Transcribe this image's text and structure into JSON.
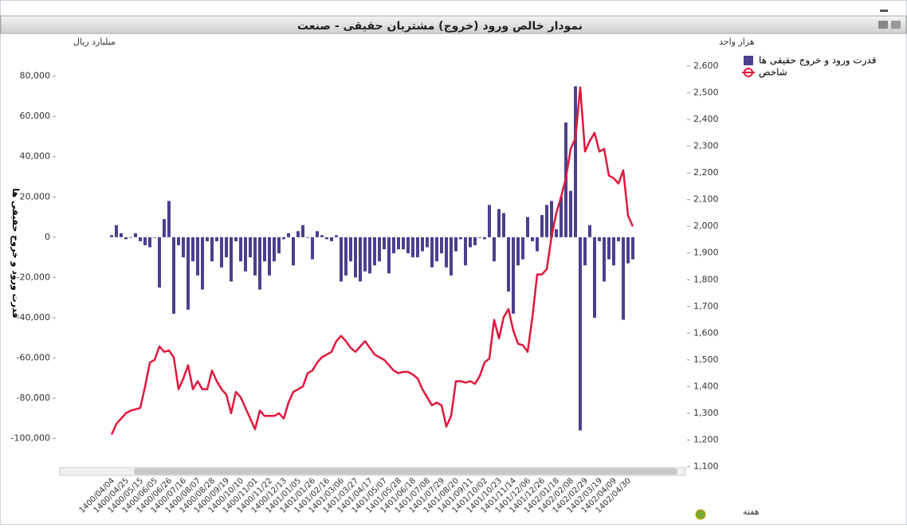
{
  "chart_data": {
    "type": "combo",
    "title": "نمودار خالص ورود (خروج) مشتریان حقیقی - صنعت",
    "y_unit": "میلیارد ریال",
    "y2_unit": "هزار واحد",
    "ylabel": "قدرت ورود و خروج حقیقی ها",
    "xlabel": "هفته",
    "categories": [
      "1400/04/04",
      null,
      null,
      "1400/04/25",
      null,
      null,
      "1400/05/15",
      null,
      null,
      "1400/06/05",
      null,
      null,
      "1400/06/26",
      null,
      null,
      "1400/07/16",
      null,
      null,
      "1400/08/07",
      null,
      null,
      "1400/08/28",
      null,
      null,
      "1400/09/19",
      null,
      null,
      "1400/10/10",
      null,
      null,
      "1400/11/01",
      null,
      null,
      "1400/11/22",
      null,
      null,
      "1400/12/13",
      null,
      null,
      "1401/01/05",
      null,
      null,
      "1401/01/26",
      null,
      null,
      "1401/02/16",
      null,
      null,
      "1401/03/06",
      null,
      null,
      "1401/03/27",
      null,
      null,
      "1401/04/17",
      null,
      null,
      "1401/05/07",
      null,
      null,
      "1401/05/28",
      null,
      null,
      "1401/06/18",
      null,
      null,
      "1401/07/08",
      null,
      null,
      "1401/07/29",
      null,
      null,
      "1401/08/20",
      null,
      null,
      "1401/09/11",
      null,
      null,
      "1401/10/02",
      null,
      null,
      "1401/10/23",
      null,
      null,
      "1401/11/14",
      null,
      null,
      "1401/12/06",
      null,
      null,
      "1401/12/26",
      null,
      null,
      "1402/01/18",
      null,
      null,
      "1402/02/08",
      null,
      null,
      "1402/02/29",
      null,
      null,
      "1402/03/19",
      null,
      null,
      "1402/04/09",
      null,
      null,
      "1402/04/30",
      null
    ],
    "series": [
      {
        "name": "قدرت ورود و خروج حقیقی ها",
        "type": "bar",
        "color": "#4b3f8e",
        "values": [
          1000,
          6000,
          2000,
          -1000,
          0,
          2000,
          -2000,
          -4000,
          -5000,
          0,
          -25000,
          9000,
          18000,
          -38000,
          -4000,
          -10000,
          -36000,
          -12000,
          -19000,
          -26000,
          -2000,
          -12000,
          -2000,
          -15000,
          -10000,
          -22000,
          -2000,
          -12000,
          -17000,
          -10000,
          -19000,
          -26000,
          -12000,
          -19000,
          -12000,
          -8000,
          -1000,
          2000,
          -14000,
          3000,
          6000,
          0,
          -11000,
          3000,
          1000,
          -1000,
          -2000,
          1000,
          -22000,
          -19000,
          -12000,
          -20000,
          -22000,
          -17000,
          -18000,
          -14000,
          -12000,
          -6000,
          -18000,
          -8000,
          -6000,
          -6000,
          -8000,
          -10000,
          -10000,
          -7000,
          -5000,
          -15000,
          -12000,
          -8000,
          -15000,
          -19000,
          -7000,
          -1000,
          -14000,
          -5000,
          -4000,
          0,
          -1000,
          16000,
          -12000,
          14000,
          12000,
          -27000,
          -38000,
          -14000,
          -11000,
          10000,
          -2000,
          -7000,
          11000,
          16000,
          18000,
          4000,
          20000,
          57000,
          23000,
          75000,
          -96000,
          -14000,
          6000,
          -40000,
          -2000,
          -22000,
          -11000,
          -14000,
          -2000,
          -41000,
          -13000,
          -11000
        ]
      },
      {
        "name": "شاخص",
        "type": "line",
        "axis": "y2",
        "color": "#e0173d",
        "values": [
          1220,
          1260,
          1280,
          1300,
          1310,
          1315,
          1320,
          1400,
          1490,
          1500,
          1550,
          1530,
          1535,
          1510,
          1390,
          1430,
          1480,
          1390,
          1420,
          1390,
          1390,
          1460,
          1420,
          1390,
          1370,
          1300,
          1380,
          1360,
          1320,
          1280,
          1240,
          1310,
          1290,
          1290,
          1290,
          1300,
          1280,
          1340,
          1380,
          1390,
          1400,
          1450,
          1460,
          1490,
          1510,
          1520,
          1530,
          1570,
          1590,
          1570,
          1545,
          1530,
          1550,
          1570,
          1545,
          1520,
          1510,
          1500,
          1480,
          1460,
          1450,
          1455,
          1455,
          1445,
          1430,
          1390,
          1360,
          1330,
          1340,
          1330,
          1250,
          1290,
          1420,
          1420,
          1415,
          1420,
          1410,
          1440,
          1490,
          1505,
          1650,
          1580,
          1660,
          1690,
          1610,
          1560,
          1555,
          1530,
          1660,
          1820,
          1820,
          1840,
          1960,
          2050,
          2110,
          2180,
          2290,
          2330,
          2520,
          2280,
          2320,
          2350,
          2280,
          2290,
          2190,
          2180,
          2160,
          2210,
          2040,
          2000
        ]
      }
    ],
    "ylim": [
      -114000,
      85000
    ],
    "yticks": [
      {
        "value": 80000,
        "label": "80,000"
      },
      {
        "value": 60000,
        "label": "60,000"
      },
      {
        "value": 40000,
        "label": "40,000"
      },
      {
        "value": 20000,
        "label": "20,000"
      },
      0,
      {
        "value": -20000,
        "label": "-20,000"
      },
      {
        "value": -40000,
        "label": "-40,000"
      },
      {
        "value": -60000,
        "label": "-60,000"
      },
      {
        "value": -80000,
        "label": "-80,000"
      },
      {
        "value": -100000,
        "label": "-100,000"
      }
    ],
    "y2lim": [
      1100,
      2600
    ],
    "y2ticks": [
      {
        "value": 1100,
        "label": "1,100"
      },
      {
        "value": 1200,
        "label": "1,200"
      },
      {
        "value": 1300,
        "label": "1,300"
      },
      {
        "value": 1400,
        "label": "1,400"
      },
      {
        "value": 1500,
        "label": "1,500"
      },
      {
        "value": 1600,
        "label": "1,600"
      },
      {
        "value": 1700,
        "label": "1,700"
      },
      {
        "value": 1800,
        "label": "1,800"
      },
      {
        "value": 1900,
        "label": "1,900"
      },
      {
        "value": 2000,
        "label": "2,000"
      },
      {
        "value": 2100,
        "label": "2,100"
      },
      {
        "value": 2200,
        "label": "2,200"
      },
      {
        "value": 2300,
        "label": "2,300"
      },
      {
        "value": 2400,
        "label": "2,400"
      },
      {
        "value": 2500,
        "label": "2,500"
      },
      {
        "value": 2600,
        "label": "2,600"
      }
    ],
    "grid": false,
    "legend": "top-right"
  }
}
